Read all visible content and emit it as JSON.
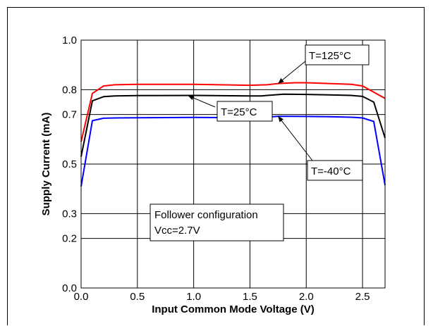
{
  "chart_data": {
    "type": "line",
    "xlabel": "Input Common Mode Voltage (V)",
    "ylabel": "Supply Current (mA)",
    "xlim": [
      0,
      2.7
    ],
    "ylim": [
      0.0,
      1.0
    ],
    "x_ticks": [
      "0.0",
      "0.5",
      "1.0",
      "1.5",
      "2.0",
      "2.5"
    ],
    "y_ticks": [
      "0.0",
      "0.2",
      "0.3",
      "0.5",
      "0.7",
      "0.8",
      "1.0"
    ],
    "y_tick_values": [
      0.0,
      0.2,
      0.3,
      0.5,
      0.7,
      0.8,
      1.0
    ],
    "grid": true,
    "series": [
      {
        "name": "T=125°C",
        "color": "#ff0000",
        "x": [
          0,
          0.1,
          0.2,
          0.3,
          0.5,
          1.0,
          1.5,
          1.65,
          1.75,
          1.9,
          2.0,
          2.2,
          2.4,
          2.5,
          2.6,
          2.7
        ],
        "y": [
          0.59,
          0.785,
          0.815,
          0.82,
          0.822,
          0.822,
          0.818,
          0.82,
          0.825,
          0.828,
          0.828,
          0.825,
          0.822,
          0.815,
          0.79,
          0.765
        ]
      },
      {
        "name": "T=25°C",
        "color": "#000000",
        "x": [
          0,
          0.1,
          0.2,
          0.3,
          0.5,
          1.0,
          1.5,
          1.6,
          1.8,
          2.0,
          2.2,
          2.4,
          2.5,
          2.6,
          2.7
        ],
        "y": [
          0.53,
          0.755,
          0.772,
          0.775,
          0.776,
          0.777,
          0.775,
          0.775,
          0.782,
          0.781,
          0.779,
          0.777,
          0.773,
          0.75,
          0.605
        ]
      },
      {
        "name": "T=-40°C",
        "color": "#0000ff",
        "x": [
          0,
          0.1,
          0.2,
          0.3,
          0.5,
          1.0,
          1.5,
          1.6,
          1.75,
          2.0,
          2.2,
          2.4,
          2.5,
          2.6,
          2.7
        ],
        "y": [
          0.41,
          0.675,
          0.685,
          0.686,
          0.687,
          0.688,
          0.687,
          0.687,
          0.693,
          0.692,
          0.691,
          0.689,
          0.686,
          0.672,
          0.415
        ]
      }
    ],
    "annotations": [
      {
        "text": "T=125°C",
        "series": "T=125°C",
        "point": [
          1.75,
          0.825
        ]
      },
      {
        "text": "T=25°C",
        "series": "T=25°C",
        "point": [
          0.95,
          0.776
        ]
      },
      {
        "text": "T=-40°C",
        "series": "T=-40°C",
        "point": [
          1.75,
          0.693
        ]
      }
    ],
    "note": {
      "lines": [
        "Follower configuration",
        "Vcc=2.7V"
      ]
    }
  }
}
